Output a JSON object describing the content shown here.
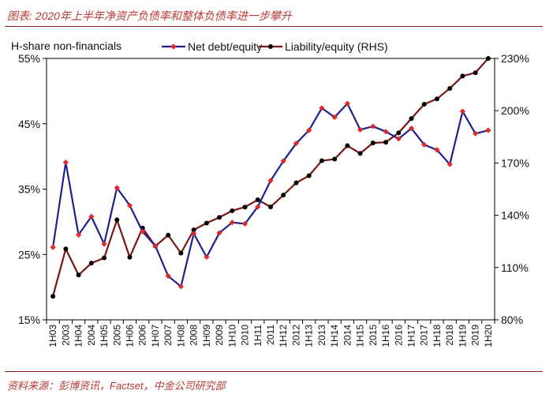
{
  "title": "图表: 2020年上半年净资产负债率和整体负债率进一步攀升",
  "source": "资料来源：彭博资讯，Factset，中金公司研究部",
  "colors": {
    "net_debt_line": "#1f1f8f",
    "net_debt_marker": "#e02a2a",
    "liability_line": "#7a1515",
    "liability_marker": "#000000",
    "title": "#b83a33",
    "rule": "#8b1a1a"
  },
  "chart_data": {
    "type": "line",
    "ylabel_left": "H-share non-financials",
    "categories": [
      "1H03",
      "2003",
      "1H04",
      "2004",
      "1H05",
      "2005",
      "1H06",
      "2006",
      "1H07",
      "2007",
      "1H08",
      "2008",
      "1H09",
      "2009",
      "1H10",
      "2010",
      "1H11",
      "2011",
      "1H12",
      "2012",
      "1H13",
      "2013",
      "1H14",
      "2014",
      "1H15",
      "2015",
      "1H16",
      "2016",
      "1H17",
      "2017",
      "1H18",
      "2018",
      "1H19",
      "2019",
      "1H20"
    ],
    "y_left": {
      "min": 15,
      "max": 55,
      "ticks": [
        15,
        25,
        35,
        45,
        55
      ],
      "tick_labels": [
        "15%",
        "25%",
        "35%",
        "45%",
        "55%"
      ]
    },
    "y_right": {
      "min": 80,
      "max": 230,
      "ticks": [
        80,
        110,
        140,
        170,
        200,
        230
      ],
      "tick_labels": [
        "80%",
        "110%",
        "140%",
        "170%",
        "200%",
        "230%"
      ]
    },
    "series": [
      {
        "name": "Net debt/equity",
        "axis": "left",
        "values": [
          26.1,
          39.1,
          28.0,
          30.8,
          26.6,
          35.2,
          32.5,
          28.5,
          26.3,
          21.7,
          20.1,
          28.2,
          24.6,
          28.3,
          29.9,
          29.7,
          32.3,
          36.3,
          39.3,
          42.0,
          44.0,
          47.4,
          46.0,
          48.1,
          44.1,
          44.6,
          43.8,
          42.7,
          44.3,
          41.8,
          41.0,
          38.8,
          46.9,
          43.5,
          44.0
        ]
      },
      {
        "name": "Liability/equity (RHS)",
        "axis": "right",
        "values": [
          93.5,
          120.7,
          105.7,
          112.5,
          115.5,
          137.4,
          115.9,
          132.7,
          122.3,
          128.6,
          118.3,
          131.6,
          135.5,
          138.8,
          142.6,
          144.7,
          148.9,
          144.8,
          151.6,
          158.6,
          162.7,
          171.3,
          172.2,
          179.9,
          175.5,
          181.5,
          181.9,
          187.3,
          195.5,
          203.7,
          206.8,
          212.8,
          219.9,
          221.8,
          230.0
        ]
      }
    ]
  }
}
